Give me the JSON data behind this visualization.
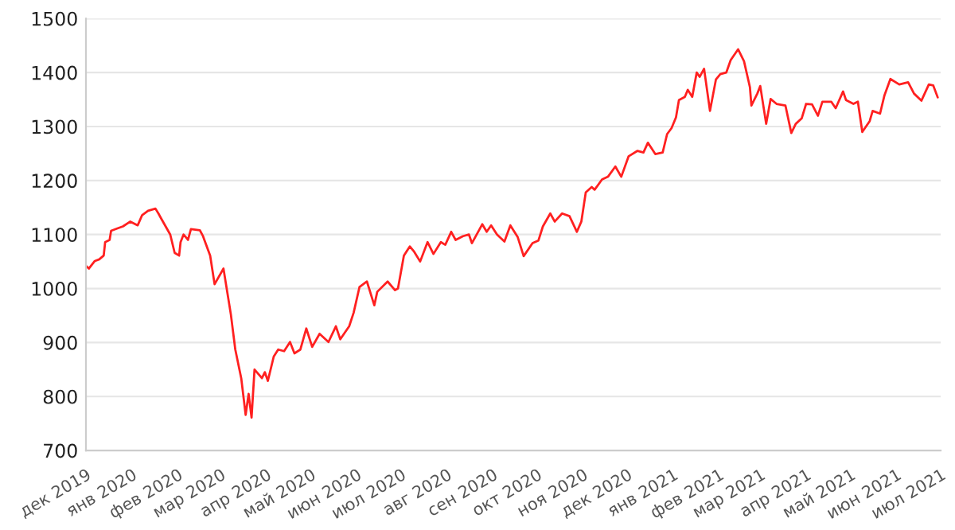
{
  "chart_data": {
    "type": "line",
    "grid": "y",
    "marker": "none",
    "line_style": "solid",
    "x": [
      "2019-12-01",
      "2019-12-03",
      "2019-12-07",
      "2019-12-10",
      "2019-12-13",
      "2019-12-14",
      "2019-12-17",
      "2019-12-18",
      "2019-12-23",
      "2019-12-26",
      "2019-12-31",
      "2020-01-05",
      "2020-01-08",
      "2020-01-12",
      "2020-01-17",
      "2020-01-19",
      "2020-01-21",
      "2020-01-27",
      "2020-01-30",
      "2020-02-02",
      "2020-02-03",
      "2020-02-05",
      "2020-02-08",
      "2020-02-10",
      "2020-02-16",
      "2020-02-18",
      "2020-02-23",
      "2020-02-26",
      "2020-03-03",
      "2020-03-08",
      "2020-03-11",
      "2020-03-15",
      "2020-03-18",
      "2020-03-20",
      "2020-03-22",
      "2020-03-24",
      "2020-03-29",
      "2020-03-31",
      "2020-04-02",
      "2020-04-06",
      "2020-04-09",
      "2020-04-13",
      "2020-04-17",
      "2020-04-20",
      "2020-04-24",
      "2020-04-28",
      "2020-05-02",
      "2020-05-07",
      "2020-05-13",
      "2020-05-18",
      "2020-05-21",
      "2020-05-27",
      "2020-05-30",
      "2020-06-03",
      "2020-06-08",
      "2020-06-13",
      "2020-06-15",
      "2020-06-22",
      "2020-06-27",
      "2020-06-29",
      "2020-07-03",
      "2020-07-07",
      "2020-07-10",
      "2020-07-14",
      "2020-07-19",
      "2020-07-23",
      "2020-07-28",
      "2020-07-31",
      "2020-08-04",
      "2020-08-07",
      "2020-08-12",
      "2020-08-16",
      "2020-08-18",
      "2020-08-25",
      "2020-08-28",
      "2020-08-31",
      "2020-09-04",
      "2020-09-09",
      "2020-09-13",
      "2020-09-18",
      "2020-09-22",
      "2020-09-28",
      "2020-10-02",
      "2020-10-05",
      "2020-10-10",
      "2020-10-13",
      "2020-10-18",
      "2020-10-23",
      "2020-10-28",
      "2020-10-31",
      "2020-11-03",
      "2020-11-07",
      "2020-11-09",
      "2020-11-14",
      "2020-11-18",
      "2020-11-23",
      "2020-11-27",
      "2020-12-02",
      "2020-12-08",
      "2020-12-12",
      "2020-12-15",
      "2020-12-20",
      "2020-12-25",
      "2020-12-28",
      "2020-12-31",
      "2021-01-03",
      "2021-01-05",
      "2021-01-09",
      "2021-01-11",
      "2021-01-14",
      "2021-01-17",
      "2021-01-19",
      "2021-01-22",
      "2021-01-26",
      "2021-01-30",
      "2021-02-02",
      "2021-02-06",
      "2021-02-09",
      "2021-02-14",
      "2021-02-18",
      "2021-02-22",
      "2021-02-23",
      "2021-02-27",
      "2021-03-01",
      "2021-03-05",
      "2021-03-08",
      "2021-03-12",
      "2021-03-18",
      "2021-03-22",
      "2021-03-25",
      "2021-03-29",
      "2021-04-01",
      "2021-04-05",
      "2021-04-09",
      "2021-04-12",
      "2021-04-18",
      "2021-04-21",
      "2021-04-26",
      "2021-04-28",
      "2021-05-03",
      "2021-05-06",
      "2021-05-09",
      "2021-05-14",
      "2021-05-16",
      "2021-05-21",
      "2021-05-24",
      "2021-05-28",
      "2021-06-03",
      "2021-06-09",
      "2021-06-13",
      "2021-06-18",
      "2021-06-23",
      "2021-06-26",
      "2021-06-29"
    ],
    "series": [
      {
        "color": "#ff2020",
        "values": [
          1042,
          1037,
          1051,
          1054,
          1061,
          1086,
          1090,
          1107,
          1112,
          1115,
          1124,
          1117,
          1136,
          1144,
          1148,
          1139,
          1129,
          1100,
          1066,
          1061,
          1086,
          1100,
          1090,
          1110,
          1108,
          1098,
          1061,
          1008,
          1037,
          952,
          887,
          834,
          766,
          805,
          761,
          850,
          834,
          845,
          829,
          874,
          887,
          884,
          901,
          880,
          887,
          926,
          892,
          916,
          901,
          930,
          906,
          930,
          955,
          1003,
          1013,
          969,
          994,
          1013,
          997,
          1000,
          1061,
          1078,
          1068,
          1050,
          1086,
          1064,
          1086,
          1081,
          1105,
          1090,
          1097,
          1100,
          1084,
          1119,
          1105,
          1117,
          1100,
          1087,
          1117,
          1095,
          1060,
          1084,
          1089,
          1115,
          1139,
          1124,
          1139,
          1134,
          1105,
          1124,
          1178,
          1188,
          1183,
          1202,
          1207,
          1226,
          1207,
          1245,
          1255,
          1252,
          1270,
          1249,
          1252,
          1286,
          1297,
          1317,
          1349,
          1355,
          1368,
          1355,
          1400,
          1392,
          1407,
          1329,
          1387,
          1397,
          1400,
          1423,
          1443,
          1421,
          1373,
          1339,
          1361,
          1375,
          1305,
          1351,
          1342,
          1339,
          1288,
          1305,
          1315,
          1342,
          1341,
          1320,
          1346,
          1346,
          1334,
          1365,
          1349,
          1342,
          1346,
          1290,
          1310,
          1329,
          1324,
          1358,
          1388,
          1378,
          1382,
          1361,
          1348,
          1378,
          1376,
          1354
        ]
      }
    ],
    "xlim": [
      "2019-12-01",
      "2021-07-01"
    ],
    "xticks": [
      {
        "value": "2019-12-01",
        "label": "дек 2019"
      },
      {
        "value": "2020-01-01",
        "label": "янв 2020"
      },
      {
        "value": "2020-02-01",
        "label": "фев 2020"
      },
      {
        "value": "2020-03-01",
        "label": "мар 2020"
      },
      {
        "value": "2020-04-01",
        "label": "апр 2020"
      },
      {
        "value": "2020-05-01",
        "label": "май 2020"
      },
      {
        "value": "2020-06-01",
        "label": "июн 2020"
      },
      {
        "value": "2020-07-01",
        "label": "июл 2020"
      },
      {
        "value": "2020-08-01",
        "label": "авг 2020"
      },
      {
        "value": "2020-09-01",
        "label": "сен 2020"
      },
      {
        "value": "2020-10-01",
        "label": "окт 2020"
      },
      {
        "value": "2020-11-01",
        "label": "ноя 2020"
      },
      {
        "value": "2020-12-01",
        "label": "дек 2020"
      },
      {
        "value": "2021-01-01",
        "label": "янв 2021"
      },
      {
        "value": "2021-02-01",
        "label": "фев 2021"
      },
      {
        "value": "2021-03-01",
        "label": "мар 2021"
      },
      {
        "value": "2021-04-01",
        "label": "апр 2021"
      },
      {
        "value": "2021-05-01",
        "label": "май 2021"
      },
      {
        "value": "2021-06-01",
        "label": "июн 2021"
      },
      {
        "value": "2021-07-01",
        "label": "июл 2021"
      }
    ],
    "ylim": [
      700,
      1500
    ],
    "yticks": [
      700,
      800,
      900,
      1000,
      1100,
      1200,
      1300,
      1400,
      1500
    ]
  }
}
